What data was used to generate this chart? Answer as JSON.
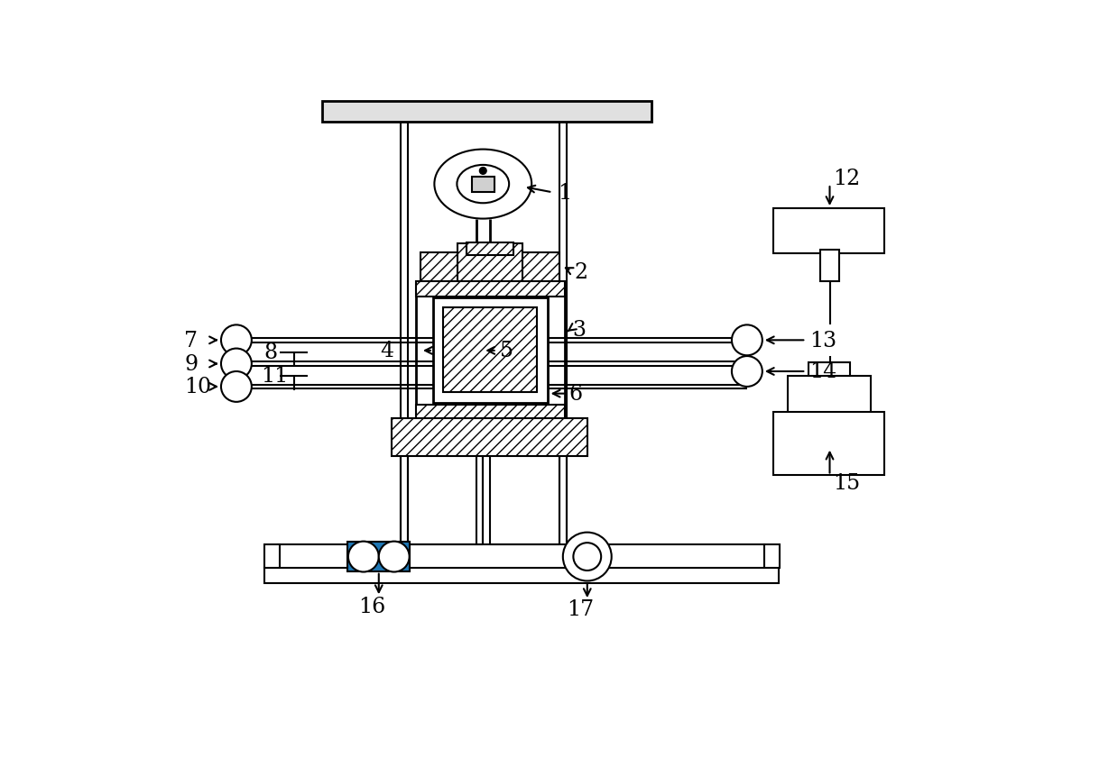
{
  "bg_color": "#ffffff",
  "lc": "#000000",
  "lw": 1.5,
  "figsize": [
    12.39,
    8.62
  ],
  "dpi": 100
}
